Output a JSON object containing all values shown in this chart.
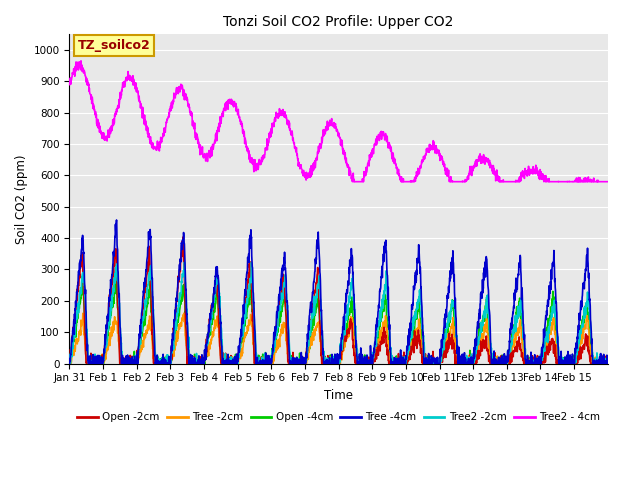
{
  "title": "Tonzi Soil CO2 Profile: Upper CO2",
  "ylabel": "Soil CO2 (ppm)",
  "xlabel": "Time",
  "watermark": "TZ_soilco2",
  "ylim": [
    0,
    1050
  ],
  "yticks": [
    0,
    100,
    200,
    300,
    400,
    500,
    600,
    700,
    800,
    900,
    1000
  ],
  "xtick_labels": [
    "Jan 31",
    "Feb 1",
    "Feb 2",
    "Feb 3",
    "Feb 4",
    "Feb 5",
    "Feb 6",
    "Feb 7",
    "Feb 8",
    "Feb 9",
    "Feb 10",
    "Feb 11",
    "Feb 12",
    "Feb 13",
    "Feb 14",
    "Feb 15"
  ],
  "series_colors": {
    "open2": "#cc0000",
    "tree2": "#ff9900",
    "open4": "#00cc00",
    "tree4": "#0000cc",
    "tree2_2cm": "#00cccc",
    "tree2_4cm": "#ff00ff"
  },
  "legend_labels": [
    "Open -2cm",
    "Tree -2cm",
    "Open -4cm",
    "Tree -4cm",
    "Tree2 -2cm",
    "Tree2 - 4cm"
  ],
  "bg_color": "#e8e8e8",
  "legend_box_color": "#ffff99",
  "legend_box_edge": "#cc9900",
  "lw": 1.2
}
